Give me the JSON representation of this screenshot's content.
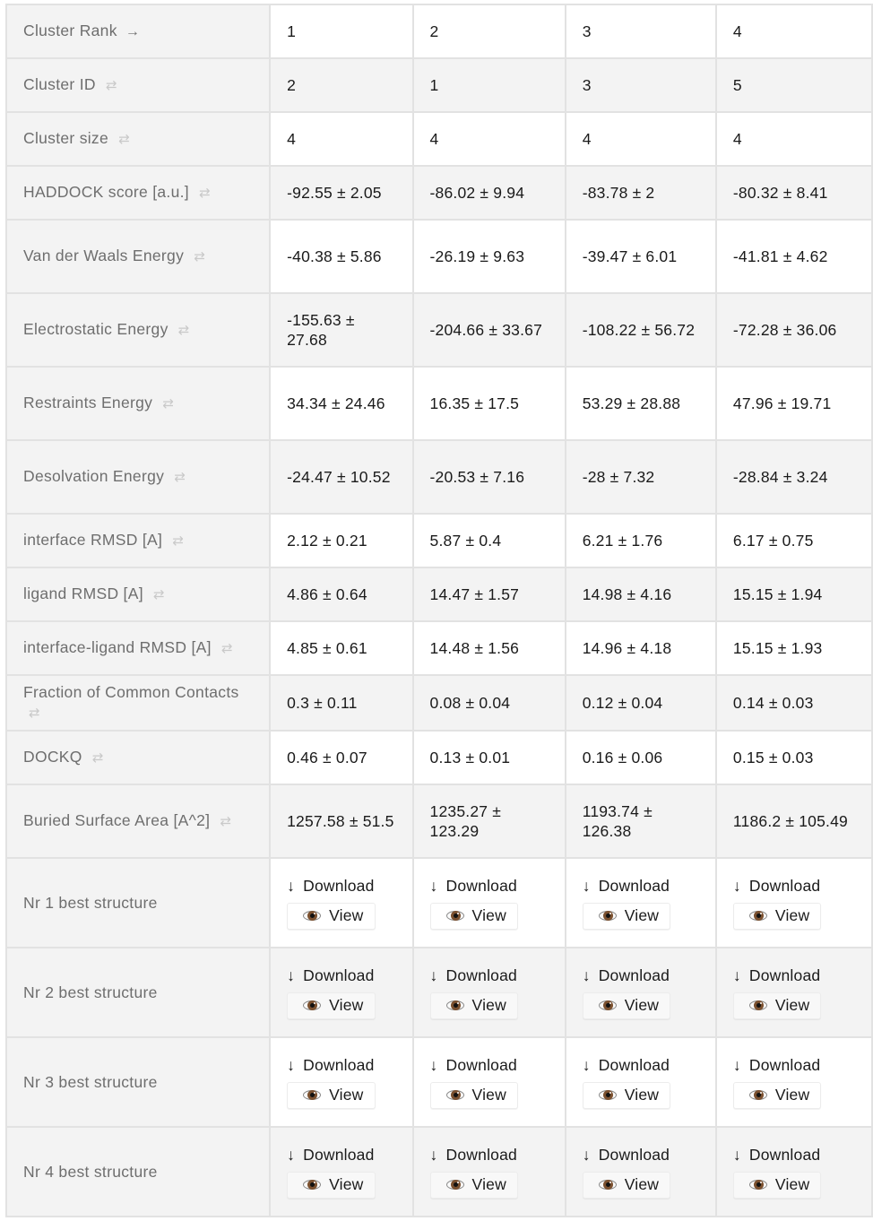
{
  "table": {
    "sort_symbol": "⇄",
    "download_label": "Download",
    "view_label": "View",
    "rows": [
      {
        "label": "Cluster Rank",
        "arrow": "→",
        "values": [
          "1",
          "2",
          "3",
          "4"
        ]
      },
      {
        "label": "Cluster ID",
        "values": [
          "2",
          "1",
          "3",
          "5"
        ]
      },
      {
        "label": "Cluster size",
        "values": [
          "4",
          "4",
          "4",
          "4"
        ]
      },
      {
        "label": "HADDOCK score [a.u.]",
        "values": [
          "-92.55 ± 2.05",
          "-86.02 ± 9.94",
          "-83.78 ± 2",
          "-80.32 ± 8.41"
        ]
      },
      {
        "label": "Van der Waals Energy",
        "values": [
          "-40.38 ± 5.86",
          "-26.19 ± 9.63",
          "-39.47 ± 6.01",
          "-41.81 ± 4.62"
        ]
      },
      {
        "label": "Electrostatic Energy",
        "values": [
          "-155.63 ± 27.68",
          "-204.66 ± 33.67",
          "-108.22 ± 56.72",
          "-72.28 ± 36.06"
        ]
      },
      {
        "label": "Restraints Energy",
        "values": [
          "34.34 ± 24.46",
          "16.35 ± 17.5",
          "53.29 ± 28.88",
          "47.96 ± 19.71"
        ]
      },
      {
        "label": "Desolvation Energy",
        "values": [
          "-24.47 ± 10.52",
          "-20.53 ± 7.16",
          "-28 ± 7.32",
          "-28.84 ± 3.24"
        ]
      },
      {
        "label": "interface RMSD [A]",
        "values": [
          "2.12 ± 0.21",
          "5.87 ± 0.4",
          "6.21 ± 1.76",
          "6.17 ± 0.75"
        ]
      },
      {
        "label": "ligand RMSD [A]",
        "values": [
          "4.86 ± 0.64",
          "14.47 ± 1.57",
          "14.98 ± 4.16",
          "15.15 ± 1.94"
        ]
      },
      {
        "label": "interface-ligand RMSD [A]",
        "values": [
          "4.85 ± 0.61",
          "14.48 ± 1.56",
          "14.96 ± 4.18",
          "15.15 ± 1.93"
        ]
      },
      {
        "label": "Fraction of Common Contacts",
        "values": [
          "0.3 ± 0.11",
          "0.08 ± 0.04",
          "0.12 ± 0.04",
          "0.14 ± 0.03"
        ]
      },
      {
        "label": "DOCKQ",
        "values": [
          "0.46 ± 0.07",
          "0.13 ± 0.01",
          "0.16 ± 0.06",
          "0.15 ± 0.03"
        ]
      },
      {
        "label": "Buried Surface Area [A^2]",
        "values": [
          "1257.58 ± 51.5",
          "1235.27 ± 123.29",
          "1193.74 ± 126.38",
          "1186.2 ± 105.49"
        ]
      }
    ],
    "structure_rows": [
      {
        "label": "Nr 1 best structure"
      },
      {
        "label": "Nr 2 best structure"
      },
      {
        "label": "Nr 3 best structure"
      },
      {
        "label": "Nr 4 best structure"
      }
    ]
  }
}
